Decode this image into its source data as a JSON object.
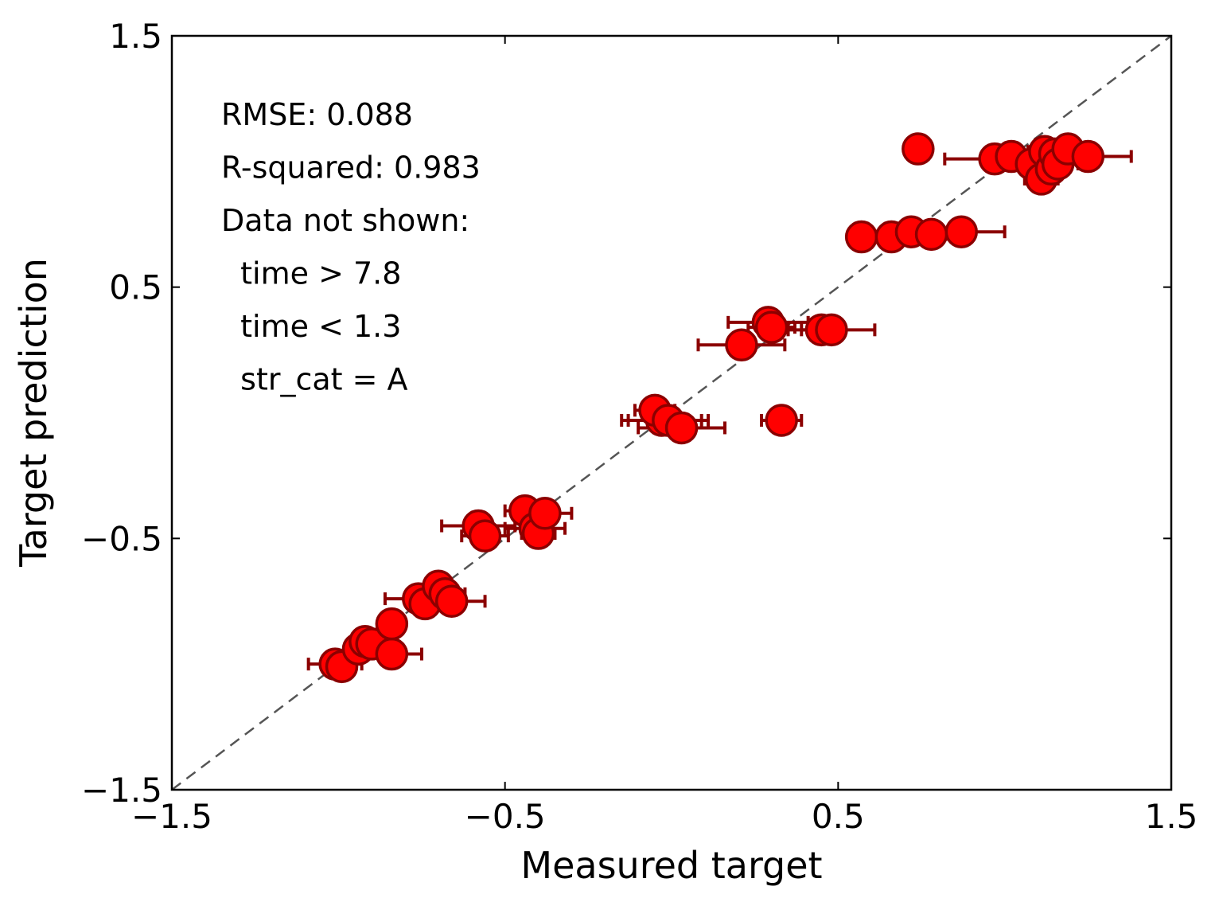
{
  "chart_data": {
    "type": "scatter",
    "title": "",
    "xlabel": "Measured target",
    "ylabel": "Target prediction",
    "xlim": [
      -1.5,
      1.5
    ],
    "ylim": [
      -1.5,
      1.5
    ],
    "x_ticks": [
      -1.5,
      -0.5,
      0.5,
      1.5
    ],
    "y_ticks": [
      -1.5,
      -0.5,
      0.5,
      1.5
    ],
    "x_tick_labels": [
      "−1.5",
      "−0.5",
      "0.5",
      "1.5"
    ],
    "y_tick_labels": [
      "−1.5",
      "−0.5",
      "0.5",
      "1.5"
    ],
    "grid": false,
    "reference_line": {
      "style": "dashed",
      "color": "#555555",
      "from": [
        -1.5,
        -1.5
      ],
      "to": [
        1.5,
        1.5
      ]
    },
    "marker_color": "#ff0000",
    "marker_edge_color": "#8b0000",
    "errorbar_color": "#8b0000",
    "annotations": [
      "RMSE: 0.088",
      "R-squared: 0.983",
      "Data not shown:",
      "  time > 7.8",
      "  time < 1.3",
      "  str_cat = A"
    ],
    "points": [
      {
        "x": -1.01,
        "y": -1.0,
        "xerr": 0.08
      },
      {
        "x": -0.99,
        "y": -1.01,
        "xerr": 0.03
      },
      {
        "x": -0.94,
        "y": -0.94,
        "xerr": 0.04
      },
      {
        "x": -0.92,
        "y": -0.91,
        "xerr": 0.04
      },
      {
        "x": -0.9,
        "y": -0.92,
        "xerr": 0.04
      },
      {
        "x": -0.84,
        "y": -0.96,
        "xerr": 0.09
      },
      {
        "x": -0.84,
        "y": -0.84,
        "xerr": 0.04
      },
      {
        "x": -0.76,
        "y": -0.74,
        "xerr": 0.1
      },
      {
        "x": -0.74,
        "y": -0.76,
        "xerr": 0.03
      },
      {
        "x": -0.7,
        "y": -0.69,
        "xerr": 0.04
      },
      {
        "x": -0.68,
        "y": -0.72,
        "xerr": 0.06
      },
      {
        "x": -0.66,
        "y": -0.75,
        "xerr": 0.1
      },
      {
        "x": -0.58,
        "y": -0.45,
        "xerr": 0.11
      },
      {
        "x": -0.56,
        "y": -0.49,
        "xerr": 0.07
      },
      {
        "x": -0.44,
        "y": -0.39,
        "xerr": 0.06
      },
      {
        "x": -0.41,
        "y": -0.46,
        "xerr": 0.09
      },
      {
        "x": -0.4,
        "y": -0.48,
        "xerr": 0.05
      },
      {
        "x": -0.38,
        "y": -0.4,
        "xerr": 0.08
      },
      {
        "x": -0.03,
        "y": -0.03,
        "xerr": 0.12
      },
      {
        "x": -0.05,
        "y": 0.01,
        "xerr": 0.06
      },
      {
        "x": -0.01,
        "y": -0.03,
        "xerr": 0.12
      },
      {
        "x": 0.03,
        "y": -0.06,
        "xerr": 0.13
      },
      {
        "x": 0.21,
        "y": 0.27,
        "xerr": 0.13
      },
      {
        "x": 0.33,
        "y": -0.03,
        "xerr": 0.06
      },
      {
        "x": 0.29,
        "y": 0.36,
        "xerr": 0.12
      },
      {
        "x": 0.3,
        "y": 0.34,
        "xerr": 0.07
      },
      {
        "x": 0.45,
        "y": 0.33,
        "xerr": 0.06
      },
      {
        "x": 0.48,
        "y": 0.33,
        "xerr": 0.13
      },
      {
        "x": 0.57,
        "y": 0.7,
        "xerr": 0.03
      },
      {
        "x": 0.66,
        "y": 0.7,
        "xerr": 0.04
      },
      {
        "x": 0.72,
        "y": 0.72,
        "xerr": 0.05
      },
      {
        "x": 0.78,
        "y": 0.71,
        "xerr": 0.05
      },
      {
        "x": 0.87,
        "y": 0.72,
        "xerr": 0.13
      },
      {
        "x": 0.74,
        "y": 1.05,
        "xerr": 0.04
      },
      {
        "x": 0.97,
        "y": 1.01,
        "xerr": 0.15
      },
      {
        "x": 1.02,
        "y": 1.02,
        "xerr": 0.05
      },
      {
        "x": 1.08,
        "y": 0.99,
        "xerr": 0.04
      },
      {
        "x": 1.11,
        "y": 0.93,
        "xerr": 0.05
      },
      {
        "x": 1.12,
        "y": 1.04,
        "xerr": 0.05
      },
      {
        "x": 1.14,
        "y": 0.97,
        "xerr": 0.05
      },
      {
        "x": 1.15,
        "y": 1.03,
        "xerr": 0.05
      },
      {
        "x": 1.16,
        "y": 0.99,
        "xerr": 0.06
      },
      {
        "x": 1.19,
        "y": 1.05,
        "xerr": 0.07
      },
      {
        "x": 1.25,
        "y": 1.02,
        "xerr": 0.13
      }
    ]
  }
}
